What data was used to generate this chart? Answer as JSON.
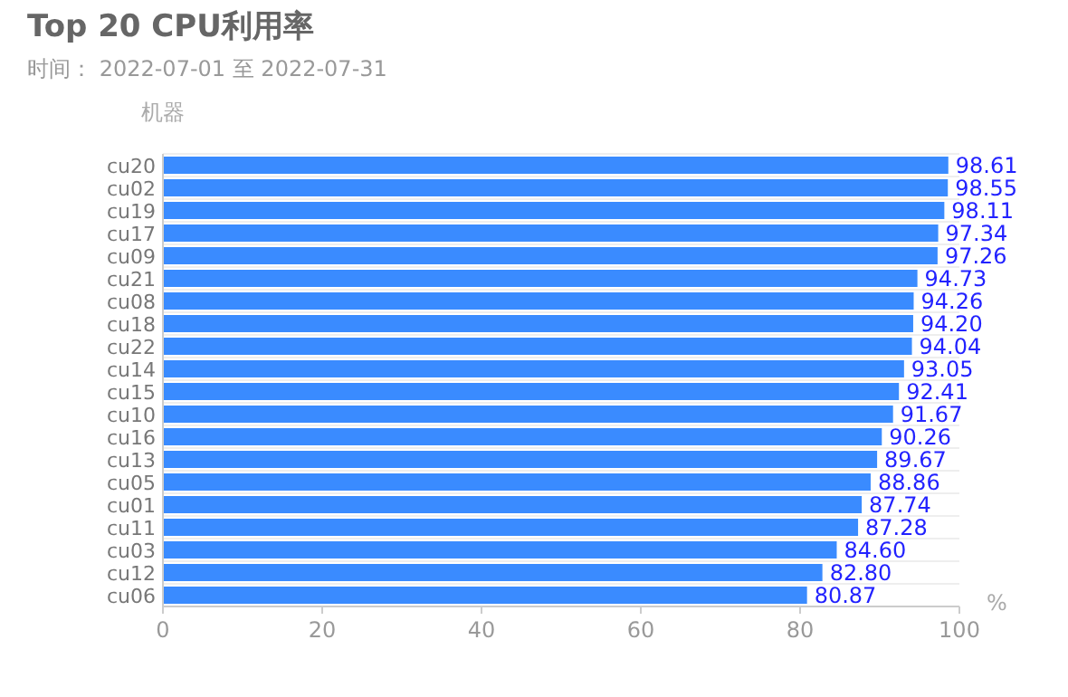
{
  "chart_data": {
    "type": "bar",
    "orientation": "horizontal",
    "title": "Top 20 CPU利用率",
    "subtitle": "时间：  2022-07-01 至 2022-07-31",
    "ylabel": "机器",
    "xlabel": "%",
    "categories": [
      "cu20",
      "cu02",
      "cu19",
      "cu17",
      "cu09",
      "cu21",
      "cu08",
      "cu18",
      "cu22",
      "cu14",
      "cu15",
      "cu10",
      "cu16",
      "cu13",
      "cu05",
      "cu01",
      "cu11",
      "cu03",
      "cu12",
      "cu06"
    ],
    "values": [
      98.61,
      98.55,
      98.11,
      97.34,
      97.26,
      94.73,
      94.26,
      94.2,
      94.04,
      93.05,
      92.41,
      91.67,
      90.26,
      89.67,
      88.86,
      87.74,
      87.28,
      84.6,
      82.8,
      80.87
    ],
    "value_labels": [
      "98.61",
      "98.55",
      "98.11",
      "97.34",
      "97.26",
      "94.73",
      "94.26",
      "94.20",
      "94.04",
      "93.05",
      "92.41",
      "91.67",
      "90.26",
      "89.67",
      "88.86",
      "87.74",
      "87.28",
      "84.60",
      "82.80",
      "80.87"
    ],
    "color": "#3a8bff",
    "xlim": [
      0,
      100
    ],
    "xticks": [
      0,
      20,
      40,
      60,
      80,
      100
    ],
    "grid": "y"
  }
}
